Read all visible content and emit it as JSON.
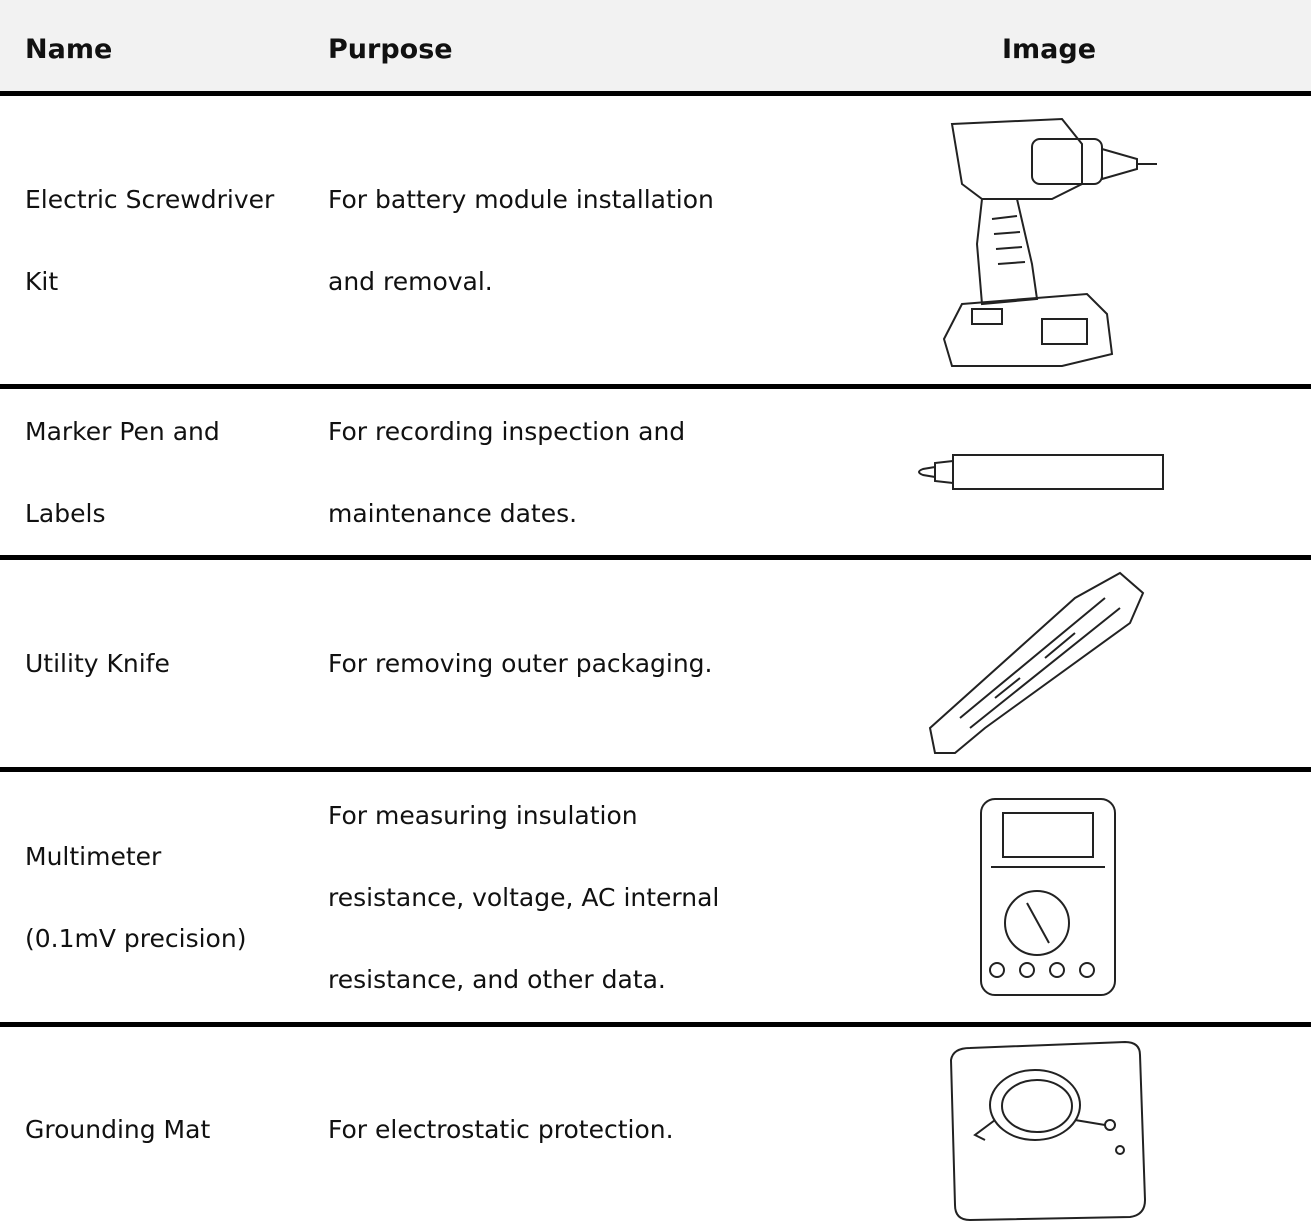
{
  "table": {
    "header": [
      "Name",
      "Purpose",
      "Image"
    ],
    "rows": [
      {
        "name": [
          "Electric Screwdriver",
          "Kit"
        ],
        "purpose": [
          "For battery module installation",
          "and removal."
        ]
      },
      {
        "name": [
          "Marker Pen and",
          "Labels"
        ],
        "purpose": [
          "For recording inspection and",
          "maintenance dates."
        ]
      },
      {
        "name": [
          "Utility Knife"
        ],
        "purpose": [
          "For removing outer packaging."
        ]
      },
      {
        "name": [
          "Multimeter",
          "(0.1mV precision)"
        ],
        "purpose": [
          "For measuring insulation",
          "resistance, voltage, AC internal",
          "resistance, and other data."
        ]
      },
      {
        "name": [
          "Grounding Mat"
        ],
        "purpose": [
          "For electrostatic protection."
        ]
      }
    ]
  }
}
